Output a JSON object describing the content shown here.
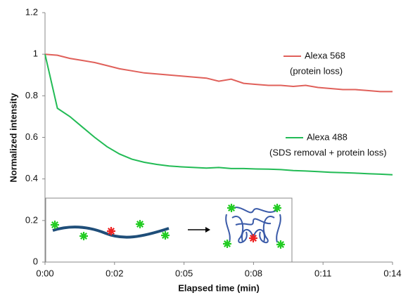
{
  "chart_data": {
    "type": "line",
    "x": [
      0,
      0.5,
      1,
      1.5,
      2,
      2.5,
      3,
      3.5,
      4,
      4.5,
      5,
      5.5,
      6,
      6.5,
      7,
      7.5,
      8,
      8.5,
      9,
      9.5,
      10,
      10.5,
      11,
      11.5,
      12,
      12.5,
      13,
      13.5,
      14
    ],
    "series": [
      {
        "name": "Alexa 568",
        "color": "#e0605a",
        "values": [
          1.0,
          0.995,
          0.98,
          0.97,
          0.96,
          0.945,
          0.93,
          0.92,
          0.91,
          0.905,
          0.9,
          0.895,
          0.89,
          0.885,
          0.87,
          0.88,
          0.86,
          0.855,
          0.85,
          0.85,
          0.845,
          0.85,
          0.84,
          0.835,
          0.83,
          0.83,
          0.825,
          0.82,
          0.82
        ]
      },
      {
        "name": "Alexa 488",
        "color": "#22bb55",
        "values": [
          1.0,
          0.74,
          0.7,
          0.65,
          0.6,
          0.555,
          0.52,
          0.495,
          0.48,
          0.47,
          0.462,
          0.458,
          0.455,
          0.452,
          0.455,
          0.45,
          0.45,
          0.448,
          0.447,
          0.445,
          0.44,
          0.438,
          0.435,
          0.432,
          0.43,
          0.428,
          0.425,
          0.423,
          0.42
        ]
      }
    ],
    "annotations": [
      "(protein loss)",
      "(SDS removal + protein loss)"
    ],
    "x_label": "Elapsed time (min)",
    "y_label": "Normalized intensity",
    "xlim": [
      0,
      14
    ],
    "xticks": [
      {
        "value": 0,
        "label": "0:00"
      },
      {
        "value": 2.8,
        "label": "0:02"
      },
      {
        "value": 5.6,
        "label": "0:05"
      },
      {
        "value": 8.4,
        "label": "0:08"
      },
      {
        "value": 11.2,
        "label": "0:11"
      },
      {
        "value": 14,
        "label": "0:14"
      }
    ],
    "ylim": [
      0,
      1.2
    ],
    "yticks": [
      0,
      0.2,
      0.4,
      0.6,
      0.8,
      1,
      1.2
    ],
    "grid": false
  }
}
